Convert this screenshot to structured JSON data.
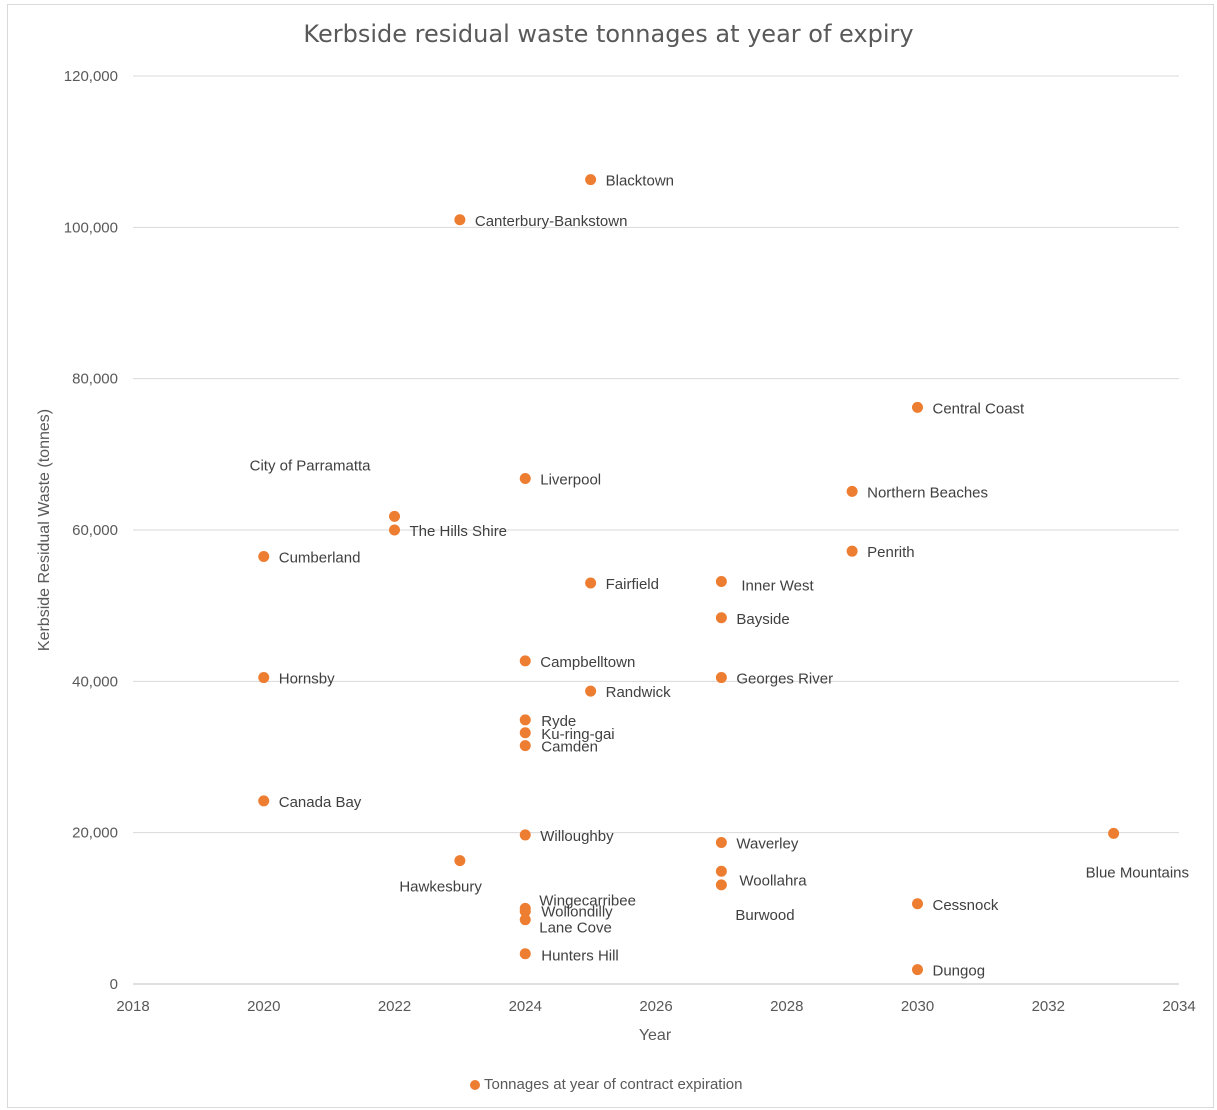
{
  "chart_data": {
    "type": "scatter",
    "title": "Kerbside residual waste tonnages at year of expiry",
    "xlabel": "Year",
    "ylabel": "Kerbside Residual Waste (tonnes)",
    "xlim": [
      2018,
      2034
    ],
    "ylim": [
      0,
      120000
    ],
    "x_ticks": [
      "2018",
      "2020",
      "2022",
      "2024",
      "2026",
      "2028",
      "2030",
      "2032",
      "2034"
    ],
    "y_ticks": [
      "0",
      "20,000",
      "40,000",
      "60,000",
      "80,000",
      "100,000",
      "120,000"
    ],
    "grid": true,
    "legend_position": "bottom",
    "series": [
      {
        "name": "Tonnages at year of contract expiration",
        "color": "#ed7d31",
        "points": [
          {
            "label": "Blacktown",
            "x": 2025,
            "y": 106300
          },
          {
            "label": "Canterbury-Bankstown",
            "x": 2023,
            "y": 101000
          },
          {
            "label": "Central Coast",
            "x": 2030,
            "y": 76200
          },
          {
            "label": "Liverpool",
            "x": 2024,
            "y": 66800
          },
          {
            "label": "Northern Beaches",
            "x": 2029,
            "y": 65100
          },
          {
            "label": "City of Parramatta",
            "x": 2022,
            "y": 61800
          },
          {
            "label": "The Hills Shire",
            "x": 2022,
            "y": 60000
          },
          {
            "label": "Penrith",
            "x": 2029,
            "y": 57200
          },
          {
            "label": "Cumberland",
            "x": 2020,
            "y": 56500
          },
          {
            "label": "Fairfield",
            "x": 2025,
            "y": 53000
          },
          {
            "label": "Inner West",
            "x": 2027,
            "y": 53200
          },
          {
            "label": "Bayside",
            "x": 2027,
            "y": 48400
          },
          {
            "label": "Campbelltown",
            "x": 2024,
            "y": 42700
          },
          {
            "label": "Hornsby",
            "x": 2020,
            "y": 40500
          },
          {
            "label": "Georges River",
            "x": 2027,
            "y": 40500
          },
          {
            "label": "Randwick",
            "x": 2025,
            "y": 38700
          },
          {
            "label": "Ryde",
            "x": 2024,
            "y": 34900
          },
          {
            "label": "Ku-ring-gai",
            "x": 2024,
            "y": 33200
          },
          {
            "label": "Camden",
            "x": 2024,
            "y": 31500
          },
          {
            "label": "Canada Bay",
            "x": 2020,
            "y": 24200
          },
          {
            "label": "Willoughby",
            "x": 2024,
            "y": 19700
          },
          {
            "label": "Blue Mountains",
            "x": 2033,
            "y": 19900
          },
          {
            "label": "Waverley",
            "x": 2027,
            "y": 18700
          },
          {
            "label": "Hawkesbury",
            "x": 2023,
            "y": 16300
          },
          {
            "label": "Woollahra",
            "x": 2027,
            "y": 14900
          },
          {
            "label": "Burwood",
            "x": 2027,
            "y": 13100
          },
          {
            "label": "Cessnock",
            "x": 2030,
            "y": 10600
          },
          {
            "label": "Wollondilly",
            "x": 2024,
            "y": 10000
          },
          {
            "label": "Wingecarribee",
            "x": 2024,
            "y": 9600
          },
          {
            "label": "Lane Cove",
            "x": 2024,
            "y": 8500
          },
          {
            "label": "Hunters Hill",
            "x": 2024,
            "y": 4000
          },
          {
            "label": "Dungog",
            "x": 2030,
            "y": 1900
          }
        ]
      }
    ]
  }
}
